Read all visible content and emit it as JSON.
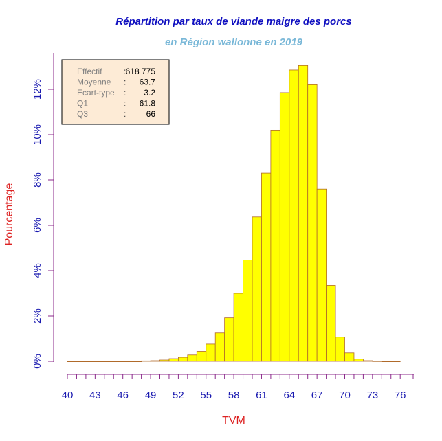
{
  "chart_data": {
    "type": "bar",
    "title": "Répartition par taux de viande maigre des porcs",
    "subtitle": "en Région wallonne en 2019",
    "xlabel": "TVM",
    "ylabel": "Pourcentage",
    "x_ticks": [
      "40",
      "43",
      "46",
      "49",
      "52",
      "55",
      "58",
      "61",
      "64",
      "67",
      "70",
      "73",
      "76"
    ],
    "y_ticks": [
      "0%",
      "2%",
      "4%",
      "6%",
      "8%",
      "10%",
      "12%"
    ],
    "xlim": [
      40,
      76
    ],
    "ylim": [
      0,
      13
    ],
    "bin_width": 1,
    "bins": [
      {
        "x": 40,
        "value": 0.0
      },
      {
        "x": 41,
        "value": 0.0
      },
      {
        "x": 42,
        "value": 0.0
      },
      {
        "x": 43,
        "value": 0.0
      },
      {
        "x": 44,
        "value": 0.0
      },
      {
        "x": 45,
        "value": 0.0
      },
      {
        "x": 46,
        "value": 0.0
      },
      {
        "x": 47,
        "value": 0.0
      },
      {
        "x": 48,
        "value": 0.02
      },
      {
        "x": 49,
        "value": 0.03
      },
      {
        "x": 50,
        "value": 0.06
      },
      {
        "x": 51,
        "value": 0.12
      },
      {
        "x": 52,
        "value": 0.18
      },
      {
        "x": 53,
        "value": 0.28
      },
      {
        "x": 54,
        "value": 0.44
      },
      {
        "x": 55,
        "value": 0.76
      },
      {
        "x": 56,
        "value": 1.25
      },
      {
        "x": 57,
        "value": 1.92
      },
      {
        "x": 58,
        "value": 3.0
      },
      {
        "x": 59,
        "value": 4.47
      },
      {
        "x": 60,
        "value": 6.37
      },
      {
        "x": 61,
        "value": 8.3
      },
      {
        "x": 62,
        "value": 10.2
      },
      {
        "x": 63,
        "value": 11.85
      },
      {
        "x": 64,
        "value": 12.85
      },
      {
        "x": 65,
        "value": 13.05
      },
      {
        "x": 66,
        "value": 12.2
      },
      {
        "x": 67,
        "value": 7.6
      },
      {
        "x": 68,
        "value": 3.35
      },
      {
        "x": 69,
        "value": 1.07
      },
      {
        "x": 70,
        "value": 0.37
      },
      {
        "x": 71,
        "value": 0.1
      },
      {
        "x": 72,
        "value": 0.03
      },
      {
        "x": 73,
        "value": 0.01
      },
      {
        "x": 74,
        "value": 0.0
      },
      {
        "x": 75,
        "value": 0.0
      }
    ],
    "bar_color": "#ffff00",
    "bar_border": "#b06a2a",
    "title_color": "#1010c0",
    "subtitle_color": "#7ab8d8",
    "axis_color": "#8b2a8b",
    "tick_color": "#1a1ab0",
    "label_color": "#dd2222",
    "stats": {
      "box_fill": "#fdebd6",
      "rows": [
        {
          "label": "Effectif",
          "sep": ":",
          "value": "618 775"
        },
        {
          "label": "Moyenne",
          "sep": ":",
          "value": "63.7"
        },
        {
          "label": "Ecart-type",
          "sep": ":",
          "value": "3.2"
        },
        {
          "label": "Q1",
          "sep": ":",
          "value": "61.8"
        },
        {
          "label": "Q3",
          "sep": ":",
          "value": "66"
        }
      ]
    }
  }
}
